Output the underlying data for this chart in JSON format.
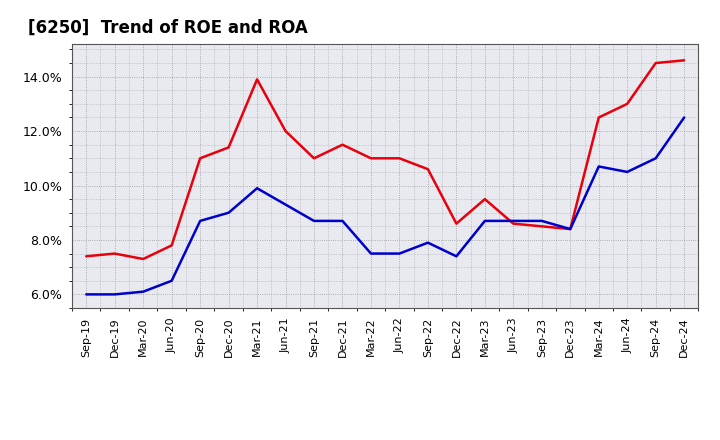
{
  "title": "[6250]  Trend of ROE and ROA",
  "x_labels": [
    "Sep-19",
    "Dec-19",
    "Mar-20",
    "Jun-20",
    "Sep-20",
    "Dec-20",
    "Mar-21",
    "Jun-21",
    "Sep-21",
    "Dec-21",
    "Mar-22",
    "Jun-22",
    "Sep-22",
    "Dec-22",
    "Mar-23",
    "Jun-23",
    "Sep-23",
    "Dec-23",
    "Mar-24",
    "Jun-24",
    "Sep-24",
    "Dec-24"
  ],
  "roe": [
    7.4,
    7.5,
    7.3,
    7.8,
    11.0,
    11.4,
    13.9,
    12.0,
    11.0,
    11.5,
    11.0,
    11.0,
    10.6,
    8.6,
    9.5,
    8.6,
    8.5,
    8.4,
    12.5,
    13.0,
    14.5,
    14.6
  ],
  "roa": [
    6.0,
    6.0,
    6.1,
    6.5,
    8.7,
    9.0,
    9.9,
    9.3,
    8.7,
    8.7,
    7.5,
    7.5,
    7.9,
    7.4,
    8.7,
    8.7,
    8.7,
    8.4,
    10.7,
    10.5,
    11.0,
    12.5
  ],
  "roe_color": "#e8000d",
  "roa_color": "#0000cc",
  "ylim": [
    5.5,
    15.2
  ],
  "yticks": [
    6.0,
    8.0,
    10.0,
    12.0,
    14.0
  ],
  "background_color": "#ffffff",
  "plot_bg_color": "#e8eaf0",
  "grid_color": "#999999",
  "title_fontsize": 12,
  "line_width": 1.8
}
